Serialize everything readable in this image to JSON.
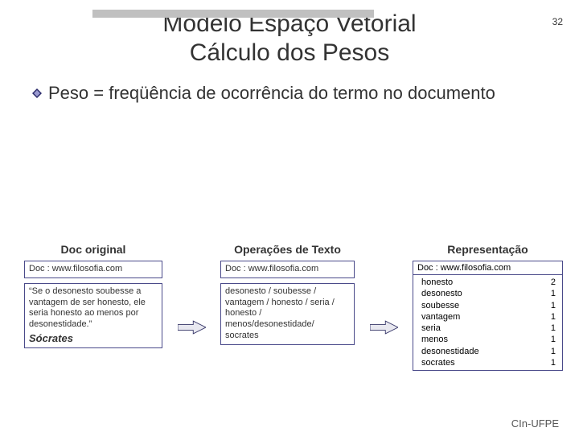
{
  "page_number": "32",
  "title_line1": "Modelo Espaço Vetorial",
  "title_line2": "Cálculo dos Pesos",
  "bullet_text": "Peso = freqüência de ocorrência do termo no documento",
  "col1": {
    "heading": "Doc original",
    "url": "Doc : www.filosofia.com",
    "quote": "“Se o desonesto soubesse a vantagem de ser honesto, ele seria honesto ao menos por desonestidade.”",
    "author": "Sócrates"
  },
  "col2": {
    "heading": "Operações de Texto",
    "url": "Doc : www.filosofia.com",
    "tokens": "desonesto / soubesse / vantagem / honesto / seria / honesto / menos/desonestidade/ socrates"
  },
  "col3": {
    "heading": "Representação",
    "url": "Doc : www.filosofia.com",
    "terms": [
      {
        "term": "honesto",
        "weight": "2"
      },
      {
        "term": "desonesto",
        "weight": "1"
      },
      {
        "term": "soubesse",
        "weight": "1"
      },
      {
        "term": "vantagem",
        "weight": "1"
      },
      {
        "term": "seria",
        "weight": "1"
      },
      {
        "term": "menos",
        "weight": "1"
      },
      {
        "term": "desonestidade",
        "weight": "1"
      },
      {
        "term": "socrates",
        "weight": "1"
      }
    ]
  },
  "footer": "CIn-UFPE",
  "colors": {
    "box_border": "#4a4a8a",
    "arrow_fill": "#e8e8f0",
    "arrow_stroke": "#333366",
    "bullet_dark": "#2a2a6a",
    "bullet_light": "#9a9ad0"
  }
}
